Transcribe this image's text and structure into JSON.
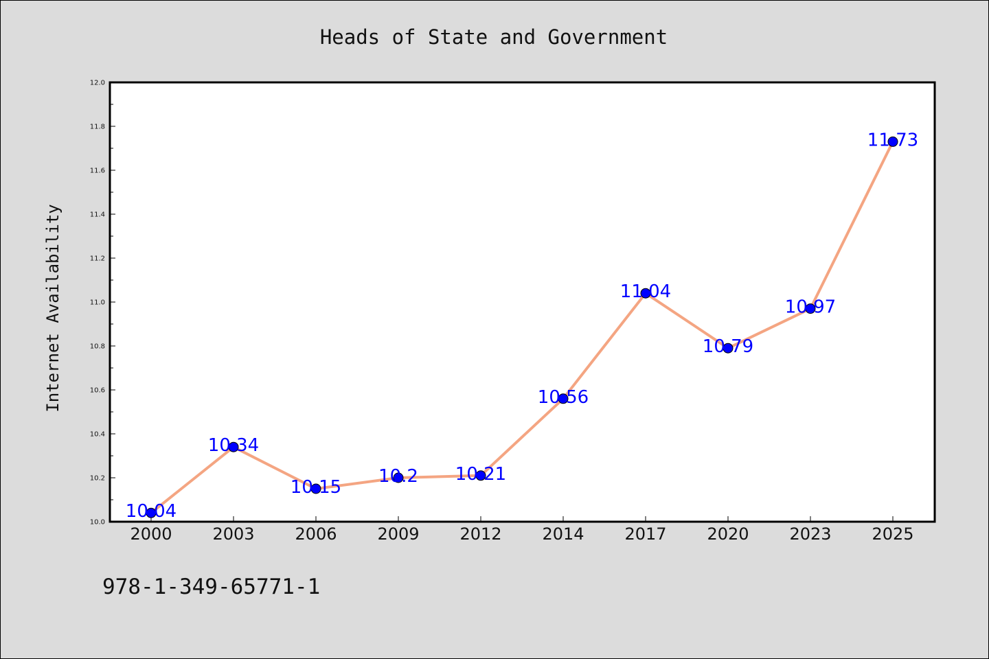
{
  "chart_data": {
    "type": "line",
    "title": "Heads of State and Government",
    "xlabel": "",
    "ylabel": "Internet Availability",
    "x": [
      "2000",
      "2003",
      "2006",
      "2009",
      "2012",
      "2014",
      "2017",
      "2020",
      "2023",
      "2025"
    ],
    "values": [
      10.04,
      10.34,
      10.15,
      10.2,
      10.21,
      10.56,
      11.04,
      10.79,
      10.97,
      11.73
    ],
    "data_labels": [
      "10.04",
      "10.34",
      "10.15",
      "10.2",
      "10.21",
      "10.56",
      "11.04",
      "10.79",
      "10.97",
      "11.73"
    ],
    "ylim": [
      10.0,
      12.0
    ],
    "yticks": [
      "10.0",
      "10.2",
      "10.4",
      "10.6",
      "10.8",
      "11.0",
      "11.2",
      "11.4",
      "11.6",
      "11.8",
      "12.0"
    ],
    "grid": false,
    "legend": "none",
    "colors": {
      "line": "#f4a582",
      "marker": "#0000ff",
      "label": "#0000ff"
    }
  },
  "caption": "978-1-349-65771-1"
}
